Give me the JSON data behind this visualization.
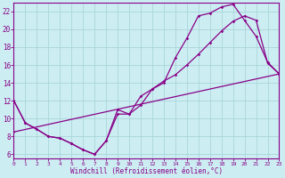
{
  "xlabel": "Windchill (Refroidissement éolien,°C)",
  "xlim": [
    0,
    23
  ],
  "ylim": [
    5.5,
    23.0
  ],
  "xticks": [
    0,
    1,
    2,
    3,
    4,
    5,
    6,
    7,
    8,
    9,
    10,
    11,
    12,
    13,
    14,
    15,
    16,
    17,
    18,
    19,
    20,
    21,
    22,
    23
  ],
  "yticks": [
    6,
    8,
    10,
    12,
    14,
    16,
    18,
    20,
    22
  ],
  "background_color": "#cceef2",
  "grid_color": "#aad4da",
  "line_color": "#880088",
  "curve1_x": [
    0,
    1,
    2,
    3,
    4,
    5,
    6,
    7,
    8,
    9,
    10,
    11,
    12,
    13,
    14,
    15,
    16,
    17,
    18,
    19,
    20,
    21,
    22,
    23
  ],
  "curve1_y": [
    12.0,
    9.5,
    8.8,
    8.0,
    7.8,
    7.2,
    6.5,
    6.0,
    7.5,
    11.0,
    10.5,
    11.5,
    13.3,
    14.0,
    16.8,
    19.0,
    21.5,
    21.8,
    22.5,
    22.8,
    21.0,
    19.2,
    16.3,
    15.0
  ],
  "curve2_x": [
    0,
    1,
    2,
    3,
    4,
    5,
    6,
    7,
    8,
    9,
    10,
    11,
    12,
    13,
    14,
    15,
    16,
    17,
    18,
    19,
    20,
    21,
    22,
    23
  ],
  "curve2_y": [
    12.0,
    9.5,
    8.8,
    8.0,
    7.8,
    7.2,
    6.5,
    6.0,
    7.5,
    10.5,
    10.5,
    12.5,
    13.3,
    14.2,
    14.9,
    16.0,
    17.2,
    18.5,
    19.8,
    20.9,
    21.5,
    21.0,
    16.2,
    15.0
  ],
  "curve3_x": [
    0,
    23
  ],
  "curve3_y": [
    8.5,
    15.0
  ]
}
